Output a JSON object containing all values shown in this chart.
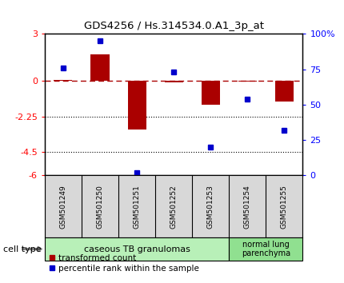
{
  "title": "GDS4256 / Hs.314534.0.A1_3p_at",
  "samples": [
    "GSM501249",
    "GSM501250",
    "GSM501251",
    "GSM501252",
    "GSM501253",
    "GSM501254",
    "GSM501255"
  ],
  "transformed_count": [
    0.05,
    1.7,
    -3.1,
    -0.1,
    -1.5,
    -0.05,
    -1.3
  ],
  "percentile_rank": [
    76,
    95,
    2,
    73,
    20,
    54,
    32
  ],
  "bar_color": "#aa0000",
  "dot_color": "#0000cc",
  "ylim_left": [
    -6,
    3
  ],
  "ylim_right": [
    0,
    100
  ],
  "yticks_left": [
    -6,
    -4.5,
    -2.25,
    0,
    3
  ],
  "yticks_right": [
    0,
    25,
    50,
    75,
    100
  ],
  "ytick_labels_left": [
    "-6",
    "-4.5",
    "-2.25",
    "0",
    "3"
  ],
  "ytick_labels_right": [
    "0",
    "25",
    "50",
    "75",
    "100%"
  ],
  "hline_y": 0,
  "dotted_lines": [
    -2.25,
    -4.5
  ],
  "cell_type_groups": [
    {
      "label": "caseous TB granulomas",
      "start": 0,
      "end": 4,
      "color": "#b8f0b8"
    },
    {
      "label": "normal lung\nparenchyma",
      "start": 5,
      "end": 6,
      "color": "#90e090"
    }
  ],
  "cell_type_label": "cell type",
  "legend_items": [
    {
      "label": "transformed count",
      "color": "#aa0000",
      "marker": "s"
    },
    {
      "label": "percentile rank within the sample",
      "color": "#0000cc",
      "marker": "s"
    }
  ],
  "bar_width": 0.5,
  "bg_color": "#d8d8d8"
}
